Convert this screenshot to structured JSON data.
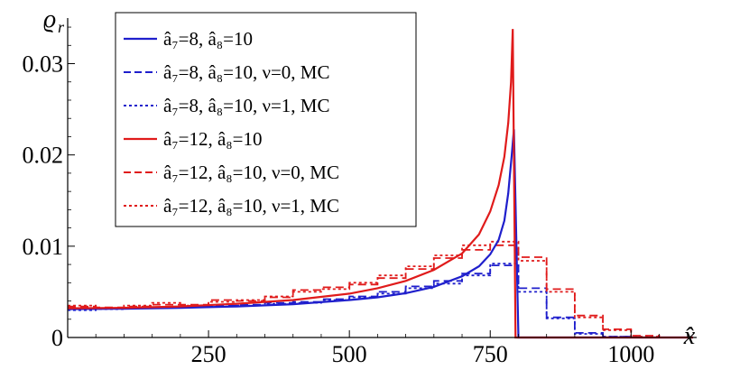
{
  "chart_data": {
    "type": "line",
    "xlabel": "x̂",
    "ylabel": "ϱ",
    "ylabel_sub": "r",
    "xlim": [
      0,
      1110
    ],
    "ylim": [
      0,
      0.0345
    ],
    "x_ticks": [
      250,
      500,
      750,
      1000
    ],
    "x_tick_labels": [
      "250",
      "500",
      "750",
      "1000"
    ],
    "y_ticks": [
      0,
      0.01,
      0.02,
      0.03
    ],
    "y_tick_labels": [
      "0",
      "0.01",
      "0.02",
      "0.03"
    ],
    "legend_position": "top-center",
    "colors": {
      "blue": "#1f1fcc",
      "red": "#e01b1b"
    },
    "series": [
      {
        "name": "â₇=8, â₈=10",
        "kind": "curve",
        "color": "blue",
        "dash": "solid",
        "x": [
          0,
          100,
          200,
          300,
          400,
          500,
          550,
          600,
          650,
          700,
          730,
          750,
          765,
          775,
          782,
          788,
          792,
          800,
          1110
        ],
        "y": [
          0.0031,
          0.00315,
          0.00325,
          0.0034,
          0.00365,
          0.0041,
          0.0044,
          0.00485,
          0.00555,
          0.0067,
          0.0078,
          0.0091,
          0.0107,
          0.0128,
          0.0158,
          0.0199,
          0.0228,
          0,
          0
        ]
      },
      {
        "name": "â₇=8, â₈=10, ν=0, MC",
        "kind": "step",
        "color": "blue",
        "dash": "dashed",
        "edges": [
          0,
          50,
          100,
          150,
          200,
          250,
          300,
          350,
          400,
          450,
          500,
          550,
          600,
          650,
          700,
          750,
          800,
          850,
          900,
          950,
          1000,
          1050,
          1110
        ],
        "values": [
          0.0031,
          0.0032,
          0.0033,
          0.0033,
          0.0034,
          0.0035,
          0.0036,
          0.0038,
          0.0039,
          0.0042,
          0.0045,
          0.005,
          0.0056,
          0.0062,
          0.007,
          0.0079,
          0.0054,
          0.0022,
          0.0005,
          0.0001,
          0,
          0
        ]
      },
      {
        "name": "â₇=8, â₈=10, ν=1, MC",
        "kind": "step",
        "color": "blue",
        "dash": "dotted",
        "edges": [
          0,
          50,
          100,
          150,
          200,
          250,
          300,
          350,
          400,
          450,
          500,
          550,
          600,
          650,
          700,
          750,
          800,
          850,
          900,
          950,
          1000,
          1050,
          1110
        ],
        "values": [
          0.003,
          0.0031,
          0.0032,
          0.0033,
          0.0033,
          0.0034,
          0.0035,
          0.0037,
          0.0038,
          0.0041,
          0.0044,
          0.0048,
          0.0054,
          0.0059,
          0.0068,
          0.0081,
          0.005,
          0.0021,
          0.0004,
          0.0001,
          0,
          0
        ]
      },
      {
        "name": "â₇=12, â₈=10",
        "kind": "curve",
        "color": "red",
        "dash": "solid",
        "x": [
          0,
          100,
          200,
          300,
          400,
          500,
          550,
          600,
          650,
          700,
          730,
          750,
          765,
          775,
          782,
          787,
          790,
          795,
          800,
          1110
        ],
        "y": [
          0.0032,
          0.00325,
          0.0034,
          0.0037,
          0.0041,
          0.0048,
          0.0054,
          0.0062,
          0.0074,
          0.0092,
          0.0113,
          0.0138,
          0.0167,
          0.0198,
          0.0235,
          0.028,
          0.0338,
          0,
          0,
          0
        ]
      },
      {
        "name": "â₇=12, â₈=10, ν=0, MC",
        "kind": "step",
        "color": "red",
        "dash": "dashed",
        "edges": [
          0,
          50,
          100,
          150,
          200,
          250,
          300,
          350,
          400,
          450,
          500,
          550,
          600,
          650,
          700,
          750,
          800,
          850,
          900,
          950,
          1000,
          1050,
          1110
        ],
        "values": [
          0.0034,
          0.0033,
          0.0034,
          0.0036,
          0.0036,
          0.0041,
          0.004,
          0.0044,
          0.0052,
          0.0055,
          0.0058,
          0.0065,
          0.0075,
          0.0087,
          0.0096,
          0.0101,
          0.0088,
          0.0053,
          0.0024,
          0.0009,
          0.0002,
          0
        ]
      },
      {
        "name": "â₇=12, â₈=10, ν=1, MC",
        "kind": "step",
        "color": "red",
        "dash": "dotted",
        "edges": [
          0,
          50,
          100,
          150,
          200,
          250,
          300,
          350,
          400,
          450,
          500,
          550,
          600,
          650,
          700,
          750,
          800,
          850,
          900,
          950,
          1000,
          1050,
          1110
        ],
        "values": [
          0.0035,
          0.0032,
          0.0035,
          0.0038,
          0.0035,
          0.0039,
          0.0041,
          0.0045,
          0.005,
          0.0053,
          0.006,
          0.0068,
          0.0078,
          0.009,
          0.0101,
          0.0105,
          0.0084,
          0.005,
          0.0022,
          0.0008,
          0.0001,
          0
        ]
      }
    ]
  }
}
